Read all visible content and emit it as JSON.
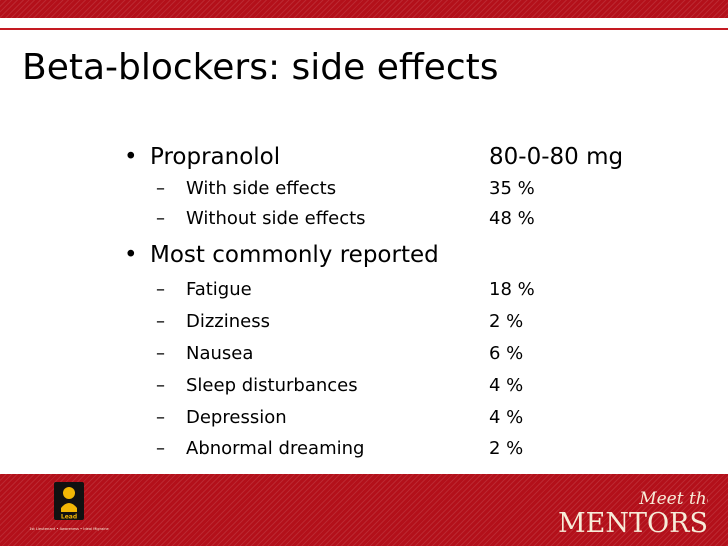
{
  "slide": {
    "title": "Beta-blockers: side effects",
    "items": [
      {
        "level": 1,
        "marker": "•",
        "label": "Propranolol",
        "value": "80-0-80 mg"
      },
      {
        "level": 2,
        "marker": "–",
        "label": "With side effects",
        "value": "35 %"
      },
      {
        "level": 2,
        "marker": "–",
        "label": "Without side effects",
        "value": "48 %"
      },
      {
        "level": 1,
        "marker": "•",
        "label": "Most commonly reported",
        "value": ""
      },
      {
        "level": 2,
        "marker": "–",
        "label": "Fatigue",
        "value": "18 %"
      },
      {
        "level": 2,
        "marker": "–",
        "label": "Dizziness",
        "value": "2 %"
      },
      {
        "level": 2,
        "marker": "–",
        "label": "Nausea",
        "value": "6 %"
      },
      {
        "level": 2,
        "marker": "–",
        "label": "Sleep disturbances",
        "value": "4 %"
      },
      {
        "level": 2,
        "marker": "–",
        "label": "Depression",
        "value": "4 %"
      },
      {
        "level": 2,
        "marker": "–",
        "label": "Abnormal dreaming",
        "value": "2 %"
      }
    ]
  },
  "footer": {
    "left_logo": {
      "icon": "lead-logo-icon",
      "text": "Lead",
      "caption": "1st Lieutenant • Awareness • Ideal Migraine"
    },
    "right_logo": {
      "line1": "Meet the",
      "line2": "MENTORS"
    }
  },
  "colors": {
    "band_red": "#b3101a",
    "rule_red": "#c41a22",
    "logo_yellow": "#f2b705",
    "text": "#000000",
    "logo_cream": "#f7ecd9"
  }
}
